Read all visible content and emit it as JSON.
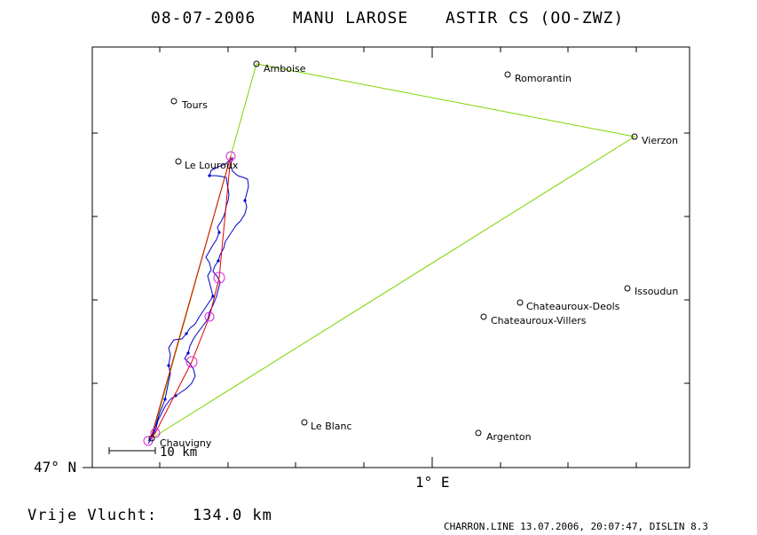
{
  "header": {
    "date": "08-07-2006",
    "pilot": "MANU LAROSE",
    "glider": "ASTIR CS (OO-ZWZ)"
  },
  "axes": {
    "lat_label": "47° N",
    "lon_label": "1° E"
  },
  "scale": {
    "label": "10 km"
  },
  "result": {
    "label": "Vrije Vlucht:",
    "value": "134.0 km"
  },
  "footer": {
    "text": "CHARRON.LINE 13.07.2006, 20:07:47, DISLIN 8.3"
  },
  "colors": {
    "task": "#7fd400",
    "track": "#0000c8",
    "optimized": "#e00000",
    "turnpoint_circle": "#e020e0",
    "frame": "#000000"
  },
  "places": [
    {
      "id": "amboise",
      "name": "Amboise"
    },
    {
      "id": "romorantin",
      "name": "Romorantin"
    },
    {
      "id": "tours",
      "name": "Tours"
    },
    {
      "id": "vierzon",
      "name": "Vierzon"
    },
    {
      "id": "le-louroux",
      "name": "Le Louroux"
    },
    {
      "id": "issoudun",
      "name": "Issoudun"
    },
    {
      "id": "chateauroux-deols",
      "name": "Chateauroux-Deols"
    },
    {
      "id": "chateauroux-villers",
      "name": "Chateauroux-Villers"
    },
    {
      "id": "le-blanc",
      "name": "Le Blanc"
    },
    {
      "id": "argenton",
      "name": "Argenton"
    },
    {
      "id": "chauvigny",
      "name": "Chauvigny"
    }
  ]
}
